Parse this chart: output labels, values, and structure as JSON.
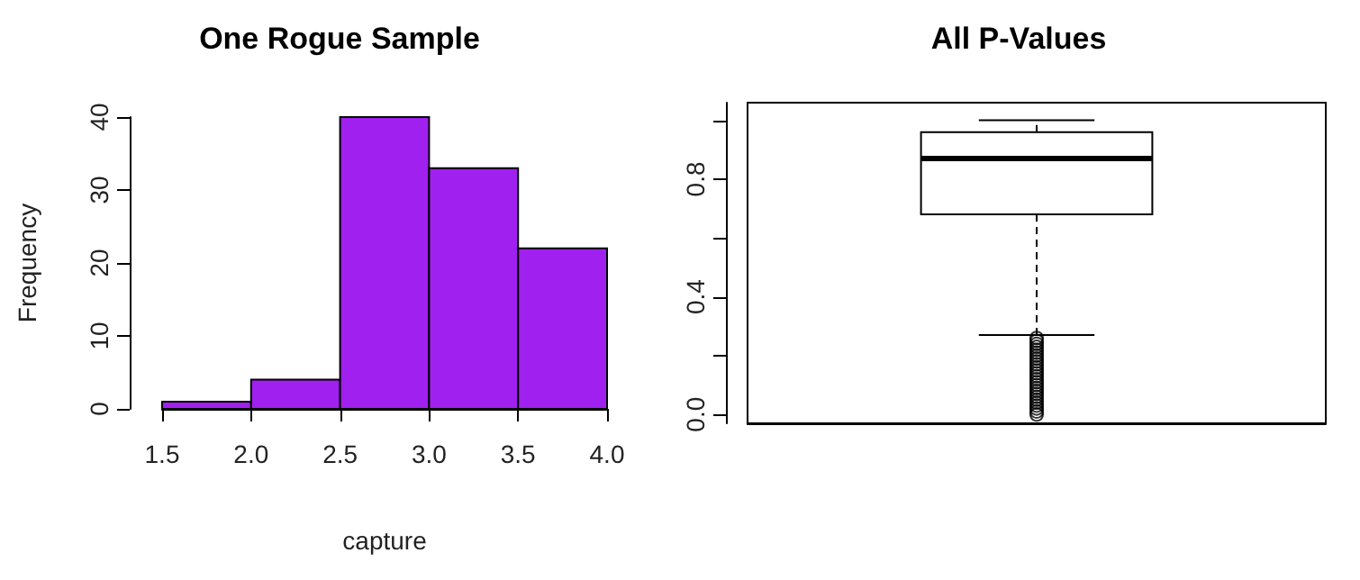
{
  "chart_data": [
    {
      "type": "histogram",
      "title": "One Rogue Sample",
      "xlabel": "capture",
      "ylabel": "Frequency",
      "bins": [
        1.5,
        2.0,
        2.5,
        3.0,
        3.5,
        4.0
      ],
      "values": [
        1,
        4,
        40,
        33,
        22
      ],
      "color": "#a020f0",
      "xlim": [
        1.5,
        4.0
      ],
      "xticks": [
        1.5,
        {
          "value": 2,
          "label": "2.0"
        },
        2.5,
        {
          "value": 3,
          "label": "3.0"
        },
        3.5,
        {
          "value": 4,
          "label": "4.0"
        }
      ],
      "ylim": [
        0,
        40
      ],
      "yticks": [
        0,
        10,
        20,
        30,
        40
      ],
      "grid": false
    },
    {
      "type": "box",
      "title": "All P-Values",
      "categories": [
        null
      ],
      "boxes": [
        {
          "low": 0.27,
          "q1": 0.68,
          "median": 0.87,
          "q3": 0.96,
          "high": 1.0,
          "outliers": [
            0.0,
            0.01,
            0.02,
            0.03,
            0.04,
            0.05,
            0.06,
            0.07,
            0.08,
            0.09,
            0.1,
            0.11,
            0.12,
            0.13,
            0.14,
            0.15,
            0.16,
            0.17,
            0.18,
            0.19,
            0.2,
            0.21,
            0.22,
            0.23,
            0.24,
            0.25,
            0.26
          ]
        }
      ],
      "ylim": [
        -0.03,
        1.06
      ],
      "yticks": [
        {
          "value": 0,
          "label": "0.0"
        },
        {
          "value": 0.2,
          "label": null
        },
        {
          "value": 0.4,
          "label": "0.4"
        },
        {
          "value": 0.6,
          "label": null
        },
        {
          "value": 0.8,
          "label": "0.8"
        },
        {
          "value": 1,
          "label": null
        }
      ],
      "color": "#ffffff",
      "grid": false
    }
  ]
}
